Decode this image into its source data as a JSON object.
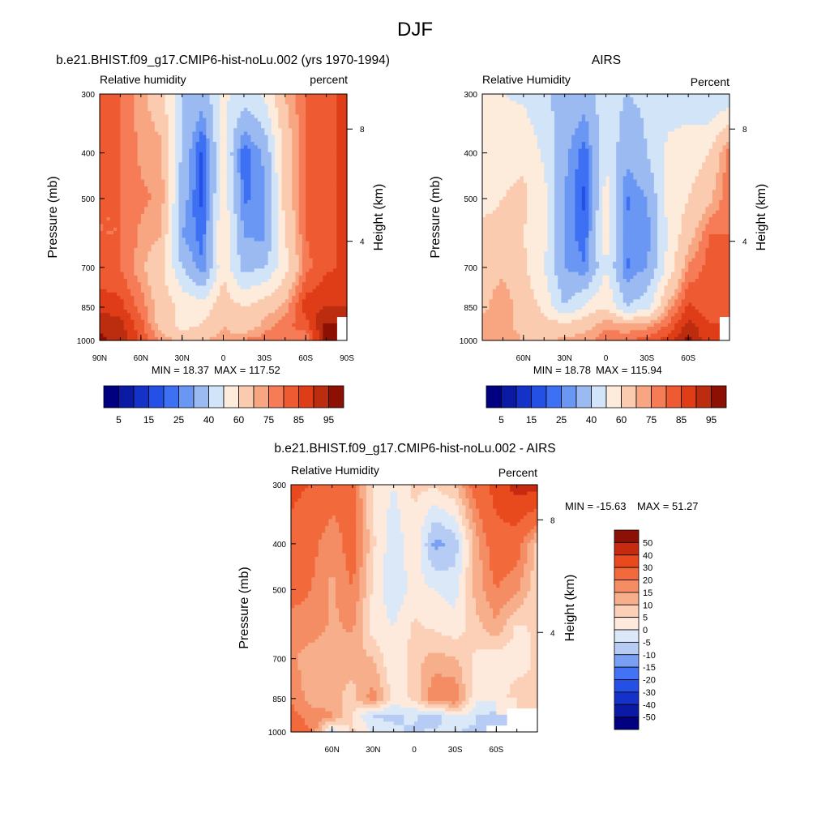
{
  "page_title": "DJF",
  "palettes": {
    "rh": [
      "#000080",
      "#0a1aa5",
      "#1432c8",
      "#2450e6",
      "#3e70f4",
      "#6a96f4",
      "#9bbaf2",
      "#d2e4f8",
      "#fdebdb",
      "#fbcbb0",
      "#f8a682",
      "#f57c56",
      "#ee5a32",
      "#de3d18",
      "#bc2c0e",
      "#8c1004"
    ],
    "diff": [
      "#000080",
      "#0a1aa5",
      "#1432c8",
      "#2450e6",
      "#4472f4",
      "#7aa0f4",
      "#b6ccf4",
      "#dbe8f8",
      "#fdeadc",
      "#fbd0b6",
      "#f7ae8a",
      "#f48d64",
      "#f26a3c",
      "#e84a1e",
      "#c62a10",
      "#8c1004"
    ]
  },
  "chart_data": [
    {
      "type": "heatmap",
      "title": "b.e21.BHIST.f09_g17.CMIP6-hist-noLu.002 (yrs 1970-1994)",
      "left_string": "Relative humidity",
      "right_string": "percent",
      "ylabel": "Pressure (mb)",
      "y2label": "Height (km)",
      "x_ticks": [
        "90N",
        "60N",
        "30N",
        "0",
        "30S",
        "60S",
        "90S"
      ],
      "y_ticks": [
        "300",
        "400",
        "500",
        "700",
        "850",
        "1000"
      ],
      "y2_ticks": [
        "8",
        "4"
      ],
      "min_text": "MIN =  18.37",
      "max_text": "MAX = 117.52",
      "colorbar_labels": [
        "5",
        "15",
        "25",
        "40",
        "60",
        "75",
        "85",
        "95"
      ],
      "x": [
        -90,
        -75,
        -60,
        -45,
        -30,
        -15,
        0,
        15,
        30,
        45,
        60,
        75,
        90
      ],
      "y": [
        1000,
        925,
        850,
        700,
        600,
        500,
        400,
        300
      ],
      "z": [
        [
          96,
          94,
          84,
          74,
          68,
          70,
          72,
          76,
          78,
          80,
          76,
          97,
          null
        ],
        [
          94,
          92,
          82,
          66,
          56,
          60,
          70,
          62,
          72,
          78,
          83,
          97,
          null
        ],
        [
          88,
          87,
          78,
          66,
          58,
          55,
          66,
          60,
          66,
          72,
          88,
          90,
          86
        ],
        [
          82,
          80,
          72,
          62,
          40,
          25,
          58,
          36,
          40,
          56,
          78,
          84,
          86
        ],
        [
          80,
          80,
          74,
          70,
          30,
          22,
          62,
          30,
          28,
          60,
          80,
          84,
          86
        ],
        [
          80,
          80,
          76,
          74,
          34,
          18,
          56,
          24,
          28,
          64,
          80,
          84,
          86
        ],
        [
          82,
          80,
          74,
          72,
          38,
          18,
          54,
          20,
          32,
          64,
          80,
          84,
          86
        ],
        [
          82,
          80,
          72,
          64,
          40,
          34,
          52,
          46,
          52,
          70,
          80,
          84,
          86
        ]
      ]
    },
    {
      "type": "heatmap",
      "title": "AIRS",
      "left_string": "Relative Humidity",
      "right_string": "Percent",
      "ylabel": "Pressure (mb)",
      "y2label": "Height (km)",
      "x_ticks": [
        "60N",
        "30N",
        "0",
        "30S",
        "60S"
      ],
      "y_ticks": [
        "300",
        "400",
        "500",
        "700",
        "850",
        "1000"
      ],
      "y2_ticks": [
        "8",
        "4"
      ],
      "min_text": "MIN =  18.78",
      "max_text": "MAX = 115.94",
      "colorbar_labels": [
        "5",
        "15",
        "25",
        "40",
        "60",
        "75",
        "85",
        "95"
      ],
      "x": [
        -90,
        -75,
        -60,
        -45,
        -30,
        -15,
        0,
        15,
        30,
        45,
        60,
        75,
        90
      ],
      "y": [
        1000,
        925,
        850,
        700,
        600,
        500,
        400,
        300
      ],
      "z": [
        [
          72,
          74,
          70,
          68,
          72,
          74,
          78,
          80,
          82,
          88,
          97,
          86,
          null
        ],
        [
          72,
          74,
          66,
          64,
          62,
          66,
          74,
          70,
          72,
          80,
          92,
          86,
          null
        ],
        [
          68,
          75,
          66,
          58,
          40,
          52,
          60,
          40,
          46,
          72,
          86,
          82,
          80
        ],
        [
          66,
          68,
          62,
          50,
          30,
          25,
          50,
          24,
          30,
          52,
          76,
          82,
          80
        ],
        [
          62,
          62,
          60,
          54,
          28,
          22,
          56,
          26,
          26,
          52,
          66,
          80,
          80
        ],
        [
          58,
          60,
          62,
          54,
          30,
          18,
          54,
          24,
          30,
          52,
          60,
          68,
          80
        ],
        [
          54,
          58,
          58,
          48,
          32,
          22,
          50,
          32,
          40,
          52,
          54,
          60,
          78
        ],
        [
          50,
          50,
          48,
          42,
          36,
          34,
          46,
          40,
          42,
          46,
          46,
          40,
          42
        ]
      ]
    },
    {
      "type": "heatmap",
      "title": "b.e21.BHIST.f09_g17.CMIP6-hist-noLu.002 - AIRS",
      "left_string": "Relative Humidity",
      "right_string": "Percent",
      "ylabel": "Pressure (mb)",
      "y2label": "Height (km)",
      "x_ticks": [
        "60N",
        "30N",
        "0",
        "30S",
        "60S"
      ],
      "y_ticks": [
        "300",
        "400",
        "500",
        "700",
        "850",
        "1000"
      ],
      "y2_ticks": [
        "8",
        "4"
      ],
      "min_text": "MIN = -15.63",
      "max_text": "MAX =  51.27",
      "colorbar_labels": [
        "50",
        "40",
        "30",
        "20",
        "15",
        "10",
        "5",
        "0",
        "-5",
        "-10",
        "-15",
        "-20",
        "-30",
        "-40",
        "-50"
      ],
      "x": [
        -90,
        -75,
        -60,
        -45,
        -30,
        -15,
        0,
        15,
        30,
        45,
        60,
        75,
        90
      ],
      "y": [
        1000,
        925,
        850,
        700,
        600,
        500,
        400,
        300
      ],
      "z": [
        [
          24,
          20,
          -4,
          6,
          0,
          -4,
          -6,
          -4,
          -4,
          -8,
          null,
          null,
          null
        ],
        [
          22,
          18,
          16,
          4,
          -6,
          -6,
          -4,
          -8,
          0,
          -2,
          -8,
          null,
          null
        ],
        [
          20,
          12,
          12,
          8,
          18,
          3,
          6,
          20,
          20,
          0,
          2,
          8,
          6
        ],
        [
          16,
          12,
          10,
          12,
          10,
          0,
          8,
          12,
          10,
          4,
          2,
          2,
          6
        ],
        [
          18,
          18,
          14,
          16,
          2,
          0,
          6,
          4,
          2,
          8,
          14,
          4,
          6
        ],
        [
          22,
          20,
          14,
          20,
          4,
          -4,
          2,
          0,
          -2,
          12,
          20,
          16,
          6
        ],
        [
          28,
          22,
          16,
          24,
          6,
          -4,
          4,
          -12,
          -8,
          12,
          26,
          24,
          8
        ],
        [
          32,
          30,
          24,
          22,
          4,
          0,
          6,
          6,
          10,
          24,
          34,
          44,
          44
        ]
      ]
    }
  ]
}
